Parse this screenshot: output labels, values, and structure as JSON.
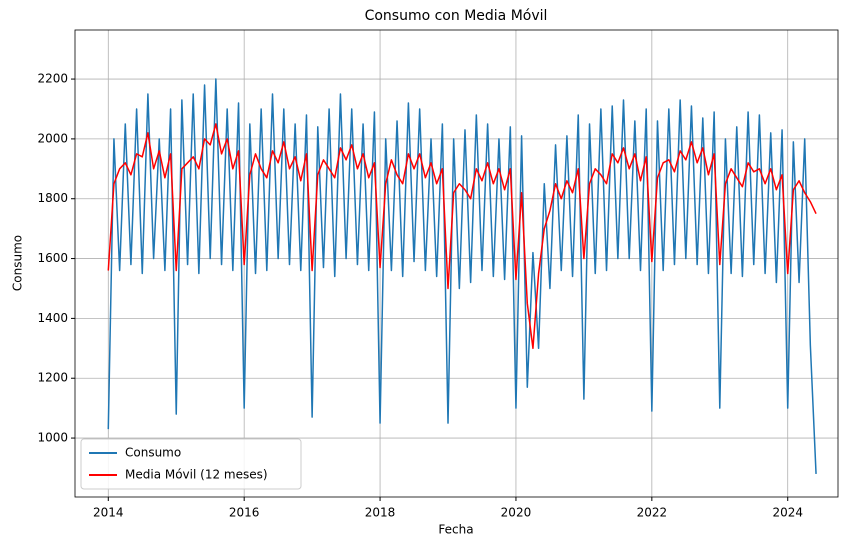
{
  "chart_data": {
    "type": "line",
    "title": "Consumo con Media Móvil",
    "x_label": "Fecha",
    "y_label": "Consumo",
    "x": [
      2014,
      2014.083,
      2014.167,
      2014.25,
      2014.333,
      2014.417,
      2014.5,
      2014.583,
      2014.667,
      2014.75,
      2014.833,
      2014.917,
      2015,
      2015.083,
      2015.167,
      2015.25,
      2015.333,
      2015.417,
      2015.5,
      2015.583,
      2015.667,
      2015.75,
      2015.833,
      2015.917,
      2016,
      2016.083,
      2016.167,
      2016.25,
      2016.333,
      2016.417,
      2016.5,
      2016.583,
      2016.667,
      2016.75,
      2016.833,
      2016.917,
      2017,
      2017.083,
      2017.167,
      2017.25,
      2017.333,
      2017.417,
      2017.5,
      2017.583,
      2017.667,
      2017.75,
      2017.833,
      2017.917,
      2018,
      2018.083,
      2018.167,
      2018.25,
      2018.333,
      2018.417,
      2018.5,
      2018.583,
      2018.667,
      2018.75,
      2018.833,
      2018.917,
      2019,
      2019.083,
      2019.167,
      2019.25,
      2019.333,
      2019.417,
      2019.5,
      2019.583,
      2019.667,
      2019.75,
      2019.833,
      2019.917,
      2020,
      2020.083,
      2020.167,
      2020.25,
      2020.333,
      2020.417,
      2020.5,
      2020.583,
      2020.667,
      2020.75,
      2020.833,
      2020.917,
      2021,
      2021.083,
      2021.167,
      2021.25,
      2021.333,
      2021.417,
      2021.5,
      2021.583,
      2021.667,
      2021.75,
      2021.833,
      2021.917,
      2022,
      2022.083,
      2022.167,
      2022.25,
      2022.333,
      2022.417,
      2022.5,
      2022.583,
      2022.667,
      2022.75,
      2022.833,
      2022.917,
      2023,
      2023.083,
      2023.167,
      2023.25,
      2023.333,
      2023.417,
      2023.5,
      2023.583,
      2023.667,
      2023.75,
      2023.833,
      2023.917,
      2024,
      2024.083,
      2024.167,
      2024.25,
      2024.333,
      2024.417
    ],
    "series": [
      {
        "name": "Consumo",
        "color": "#1f77b4",
        "values": [
          1030,
          2000,
          1560,
          2050,
          1580,
          2100,
          1550,
          2150,
          1600,
          2000,
          1560,
          2100,
          1080,
          2130,
          1580,
          2150,
          1550,
          2180,
          1600,
          2200,
          1580,
          2100,
          1560,
          2120,
          1100,
          2050,
          1550,
          2100,
          1560,
          2150,
          1600,
          2100,
          1580,
          2050,
          1560,
          2080,
          1070,
          2040,
          1570,
          2100,
          1540,
          2150,
          1600,
          2100,
          1580,
          2050,
          1560,
          2090,
          1050,
          2000,
          1560,
          2060,
          1540,
          2120,
          1590,
          2100,
          1560,
          2000,
          1540,
          2050,
          1050,
          2000,
          1500,
          2030,
          1520,
          2080,
          1560,
          2050,
          1540,
          2000,
          1530,
          2040,
          1100,
          2010,
          1170,
          1620,
          1300,
          1850,
          1500,
          1980,
          1560,
          2010,
          1540,
          2080,
          1130,
          2050,
          1550,
          2100,
          1560,
          2110,
          1600,
          2130,
          1600,
          2060,
          1560,
          2100,
          1090,
          2060,
          1560,
          2100,
          1580,
          2130,
          1600,
          2110,
          1580,
          2070,
          1550,
          2090,
          1100,
          2000,
          1550,
          2040,
          1540,
          2090,
          1580,
          2080,
          1550,
          2020,
          1520,
          2030,
          1100,
          1990,
          1520,
          2000,
          1310,
          880
        ]
      },
      {
        "name": "Media Móvil (12 meses)",
        "color": "#ff0000",
        "values": [
          1560,
          1850,
          1900,
          1920,
          1880,
          1950,
          1940,
          2020,
          1900,
          1960,
          1870,
          1950,
          1560,
          1900,
          1920,
          1940,
          1900,
          2000,
          1980,
          2050,
          1950,
          2000,
          1900,
          1960,
          1580,
          1880,
          1950,
          1900,
          1870,
          1960,
          1920,
          1990,
          1900,
          1940,
          1860,
          1950,
          1560,
          1880,
          1930,
          1900,
          1870,
          1970,
          1930,
          1980,
          1900,
          1950,
          1870,
          1920,
          1570,
          1850,
          1930,
          1880,
          1850,
          1950,
          1900,
          1950,
          1870,
          1920,
          1850,
          1900,
          1500,
          1820,
          1850,
          1830,
          1800,
          1900,
          1860,
          1920,
          1850,
          1900,
          1830,
          1900,
          1530,
          1820,
          1450,
          1300,
          1550,
          1700,
          1760,
          1850,
          1800,
          1860,
          1820,
          1900,
          1600,
          1850,
          1900,
          1880,
          1850,
          1950,
          1920,
          1970,
          1900,
          1950,
          1860,
          1940,
          1590,
          1870,
          1920,
          1930,
          1890,
          1960,
          1930,
          1990,
          1920,
          1970,
          1880,
          1950,
          1580,
          1850,
          1900,
          1870,
          1840,
          1920,
          1890,
          1900,
          1850,
          1900,
          1830,
          1880,
          1550,
          1830,
          1860,
          1820,
          1790,
          1750
        ]
      }
    ],
    "xlim": [
      2013.51,
      2024.74
    ],
    "ylim": [
      803,
      2364
    ],
    "xticks": [
      2014,
      2016,
      2018,
      2020,
      2022,
      2024
    ],
    "yticks": [
      1000,
      1200,
      1400,
      1600,
      1800,
      2000,
      2200
    ],
    "grid": true,
    "legend": "lower left"
  }
}
